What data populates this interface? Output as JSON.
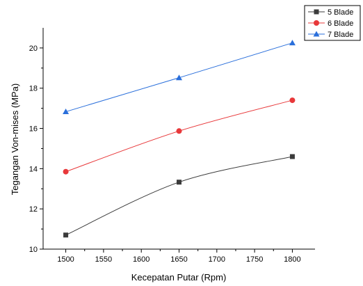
{
  "chart_data": {
    "type": "line",
    "title": "",
    "xlabel": "Kecepatan Putar (Rpm)",
    "ylabel": "Tegangan Von-mises (MPa)",
    "xlim": [
      1470,
      1830
    ],
    "ylim": [
      10,
      21
    ],
    "xticks": [
      1500,
      1550,
      1600,
      1650,
      1700,
      1750,
      1800
    ],
    "yticks": [
      10,
      12,
      14,
      16,
      18,
      20
    ],
    "x": [
      1500,
      1650,
      1800
    ],
    "grid": false,
    "legend_position": "top-right",
    "series": [
      {
        "name": "5 Blade",
        "values": [
          10.7,
          13.33,
          14.6
        ],
        "color": "#3b3b3b",
        "marker": "square",
        "smooth": true
      },
      {
        "name": "6 Blade",
        "values": [
          13.85,
          15.87,
          17.4
        ],
        "color": "#e8383a",
        "marker": "circle",
        "smooth": true
      },
      {
        "name": "7 Blade",
        "values": [
          16.83,
          18.52,
          20.25
        ],
        "color": "#2a6fdb",
        "marker": "triangle",
        "smooth": false
      }
    ]
  }
}
